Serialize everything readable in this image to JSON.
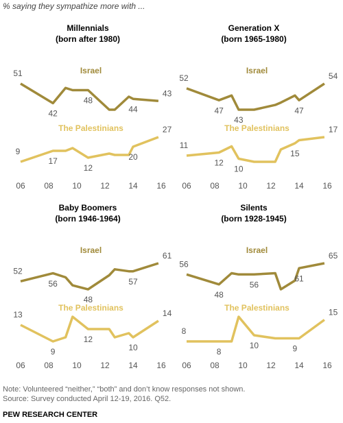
{
  "header": "% saying they sympathize more with ...",
  "chart_data": [
    {
      "type": "line",
      "title": "Millennials",
      "subtitle": "(born after 1980)",
      "x": [
        6,
        8.3,
        9.2,
        9.7,
        10.8,
        12.3,
        12.7,
        13.7,
        14,
        15.8
      ],
      "xlim": [
        6,
        16
      ],
      "xticks": [
        {
          "value": 6,
          "label": "06"
        },
        {
          "value": 8,
          "label": "08"
        },
        10,
        12,
        14,
        16
      ],
      "series": [
        {
          "name": "Israel",
          "color": "#a08a3a",
          "values": [
            51,
            42,
            49,
            48,
            48,
            39,
            39,
            45,
            44,
            43
          ],
          "value_labels": [
            "51",
            "42",
            null,
            null,
            "48",
            null,
            null,
            null,
            "44",
            "43"
          ]
        },
        {
          "name": "The Palestinians",
          "color": "#e1c25e",
          "values": [
            9,
            17,
            17,
            19,
            12,
            15,
            14,
            14,
            20,
            27
          ],
          "value_labels": [
            "9",
            "17",
            null,
            null,
            "12",
            null,
            null,
            null,
            "20",
            "27"
          ]
        }
      ]
    },
    {
      "type": "line",
      "title": "Generation X",
      "subtitle": "(born 1965-1980)",
      "x": [
        6,
        8.3,
        9.2,
        9.7,
        10.8,
        12.3,
        12.7,
        13.7,
        14,
        15.8
      ],
      "xlim": [
        6,
        16
      ],
      "xticks": [
        {
          "value": 6,
          "label": "06"
        },
        {
          "value": 8,
          "label": "08"
        },
        10,
        12,
        14,
        16
      ],
      "series": [
        {
          "name": "Israel",
          "color": "#a08a3a",
          "values": [
            52,
            47,
            49,
            43,
            43,
            45,
            46,
            49,
            47,
            54
          ],
          "value_labels": [
            "52",
            "47",
            null,
            "43",
            null,
            null,
            null,
            null,
            "47",
            "54"
          ]
        },
        {
          "name": "The Palestinians",
          "color": "#e1c25e",
          "values": [
            11,
            12,
            14,
            10,
            9,
            9,
            13,
            15,
            16,
            17
          ],
          "value_labels": [
            "11",
            "12",
            null,
            "10",
            null,
            null,
            null,
            "15",
            null,
            "17"
          ]
        }
      ]
    },
    {
      "type": "line",
      "title": "Baby Boomers",
      "subtitle": "(born 1946-1964)",
      "x": [
        6,
        8.3,
        9.2,
        9.7,
        10.8,
        12.3,
        12.7,
        13.7,
        14,
        15.8
      ],
      "xlim": [
        6,
        16
      ],
      "xticks": [
        {
          "value": 6,
          "label": "06"
        },
        {
          "value": 8,
          "label": "08"
        },
        10,
        12,
        14,
        16
      ],
      "series": [
        {
          "name": "Israel",
          "color": "#a08a3a",
          "values": [
            52,
            56,
            54,
            50,
            48,
            55,
            58,
            57,
            57,
            61
          ],
          "value_labels": [
            "52",
            "56",
            null,
            null,
            "48",
            null,
            null,
            null,
            "57",
            "61"
          ]
        },
        {
          "name": "The Palestinians",
          "color": "#e1c25e",
          "values": [
            13,
            9,
            10,
            15,
            12,
            12,
            10,
            11,
            10,
            14
          ],
          "value_labels": [
            "13",
            "9",
            null,
            null,
            "12",
            null,
            null,
            null,
            "10",
            "14"
          ]
        }
      ]
    },
    {
      "type": "line",
      "title": "Silents",
      "subtitle": "(born 1928-1945)",
      "x": [
        6,
        8.3,
        9.2,
        9.7,
        10.8,
        12.3,
        12.7,
        13.7,
        14,
        15.8
      ],
      "xlim": [
        6,
        16
      ],
      "xticks": [
        {
          "value": 6,
          "label": "06"
        },
        {
          "value": 8,
          "label": "08"
        },
        10,
        12,
        14,
        16
      ],
      "series": [
        {
          "name": "Israel",
          "color": "#a08a3a",
          "values": [
            56,
            48,
            57,
            56,
            56,
            57,
            44,
            51,
            61,
            65
          ],
          "value_labels": [
            "56",
            "48",
            null,
            null,
            "56",
            null,
            null,
            null,
            "61",
            "65"
          ]
        },
        {
          "name": "The Palestinians",
          "color": "#e1c25e",
          "values": [
            8,
            8,
            8,
            16,
            10,
            9,
            9,
            9,
            9,
            15
          ],
          "value_labels": [
            "8",
            "8",
            null,
            null,
            "10",
            null,
            null,
            "9",
            null,
            "15"
          ]
        }
      ]
    }
  ],
  "note": "Note: Volunteered “neither,” “both” and don’t know responses not shown.",
  "source": "Source: Survey conducted April 12-19, 2016. Q52.",
  "footer": "PEW RESEARCH CENTER"
}
